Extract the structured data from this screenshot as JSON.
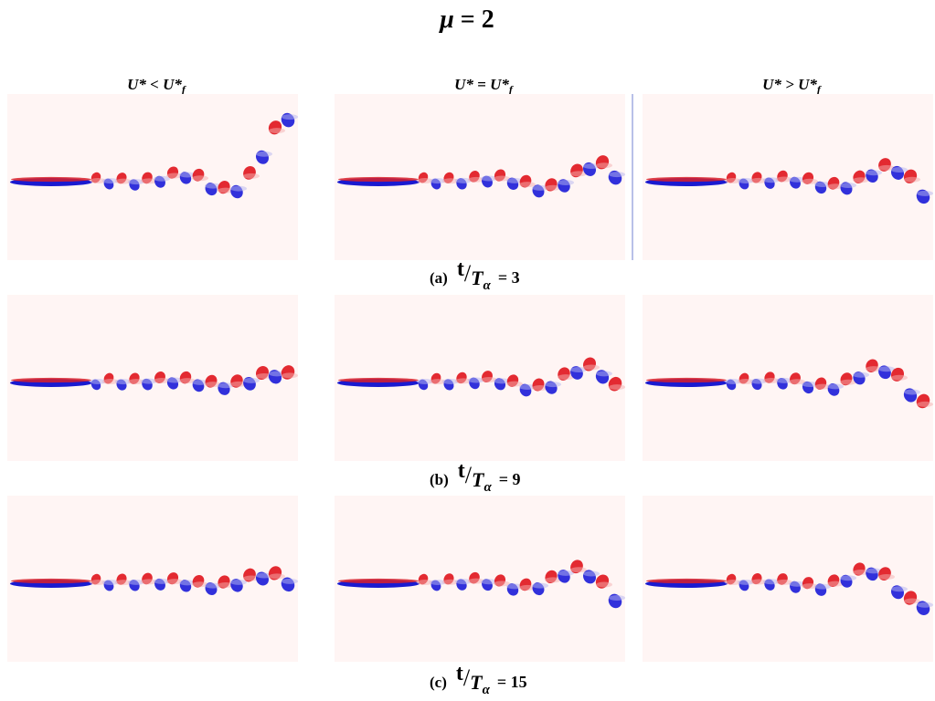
{
  "title": {
    "symbol": "μ",
    "rest": " = 2"
  },
  "columns": [
    {
      "main": "U* < U*",
      "sub": "f"
    },
    {
      "main": "U* = U*",
      "sub": "f"
    },
    {
      "main": "U* > U*",
      "sub": "f"
    }
  ],
  "captions": [
    {
      "label": "(a)",
      "numerator": "t",
      "slash": "/",
      "denominator": "T",
      "subscript": "α",
      "equals": "= 3"
    },
    {
      "label": "(b)",
      "numerator": "t",
      "slash": "/",
      "denominator": "T",
      "subscript": "α",
      "equals": "= 9"
    },
    {
      "label": "(c)",
      "numerator": "t",
      "slash": "/",
      "denominator": "T",
      "subscript": "α",
      "equals": "= 15"
    }
  ]
}
